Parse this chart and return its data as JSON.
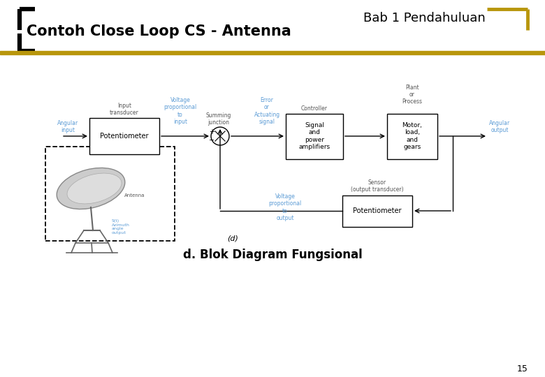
{
  "title_right": "Bab 1 Pendahuluan",
  "title_left": "Contoh Close Loop CS - Antenna",
  "caption": "d. Blok Diagram Fungsional",
  "page_number": "15",
  "bg_color": "#ffffff",
  "title_color": "#000000",
  "gold_color": "#b8960c",
  "blue": "#5b9bd5",
  "dark": "#555555"
}
